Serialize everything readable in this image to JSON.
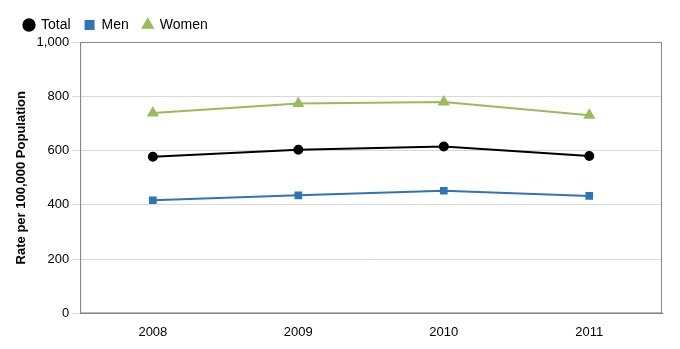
{
  "chart_data": {
    "type": "line",
    "y_label": "Rate per 100,000 Population",
    "categories": [
      "2008",
      "2009",
      "2010",
      "2011"
    ],
    "series": [
      {
        "name": "Total",
        "color": "#000000",
        "marker": "circle",
        "values": [
          577,
          603,
          615,
          580
        ]
      },
      {
        "name": "Men",
        "color": "#2e75b6",
        "marker": "square",
        "values": [
          417,
          435,
          452,
          433
        ]
      },
      {
        "name": "Women",
        "color": "#9bbb59",
        "marker": "triangle",
        "values": [
          738,
          773,
          779,
          730
        ]
      }
    ],
    "ylim": [
      0,
      1000
    ],
    "yticks": [
      0,
      {
        "value": 200,
        "label": "200"
      },
      400,
      600,
      800,
      {
        "value": 1000,
        "label": "1,000"
      }
    ],
    "grid": true,
    "legend": "top"
  }
}
